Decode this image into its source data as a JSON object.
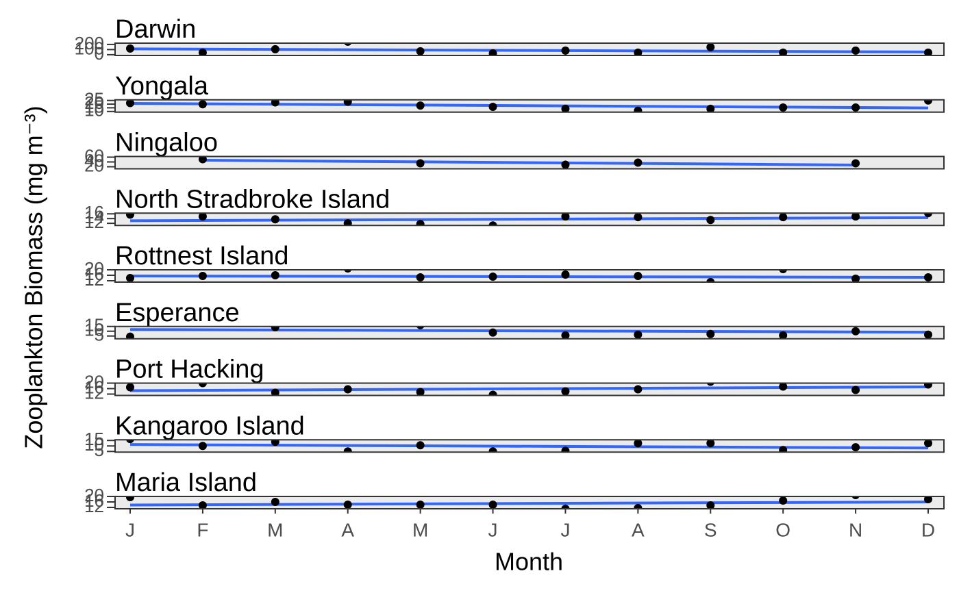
{
  "chart_data": {
    "type": "facet-scatter",
    "x_label": "Month",
    "y_label": "Zooplankton Biomass (mg m⁻³)",
    "categories": [
      "J",
      "F",
      "M",
      "A",
      "M",
      "J",
      "J",
      "A",
      "S",
      "O",
      "N",
      "D"
    ],
    "point_color": "#000000",
    "fit_color": "#3366ff",
    "panels": [
      {
        "title": "Darwin",
        "ylim": [
          -15,
          225
        ],
        "yticks": [
          0,
          100,
          200
        ],
        "values": [
          120,
          40,
          107,
          253,
          67,
          27,
          80,
          40,
          147,
          40,
          80,
          40
        ],
        "fit": [
          113,
          53
        ]
      },
      {
        "title": "Yongala",
        "ylim": [
          9.1,
          25.9
        ],
        "yticks": [
          10,
          15,
          20,
          25
        ],
        "values": [
          21.5,
          19.8,
          22.4,
          23.3,
          18.1,
          16.3,
          13.7,
          11,
          13.7,
          15.4,
          15.4,
          25
        ],
        "fit": [
          21,
          14.8
        ]
      },
      {
        "title": "Ningaloo",
        "ylim": [
          11.4,
          62.9
        ],
        "yticks": [
          20,
          40,
          60
        ],
        "values": [
          null,
          51.4,
          null,
          null,
          34.3,
          null,
          28.6,
          37.1,
          null,
          null,
          34.3,
          null
        ],
        "fit": [
          47.1,
          27.1
        ]
      },
      {
        "title": "North Stradbroke Island",
        "ylim": [
          11.1,
          16.3
        ],
        "yticks": [
          12,
          14,
          16
        ],
        "values": [
          15.7,
          14.9,
          13.7,
          12,
          11.7,
          11.1,
          14.9,
          14.6,
          13.4,
          14.6,
          14.9,
          16.3
        ],
        "fit": [
          13.1,
          14.4
        ]
      },
      {
        "title": "Rottnest Island",
        "ylim": [
          11,
          20
        ],
        "yticks": [
          12,
          16,
          20
        ],
        "values": [
          14,
          15.5,
          16,
          21,
          14.5,
          15,
          16.5,
          15.5,
          11,
          20.5,
          13.5,
          14.5
        ],
        "fit": [
          15.5,
          14.5
        ]
      },
      {
        "title": "Esperance",
        "ylim": [
          2.1,
          15
        ],
        "yticks": [
          5,
          10,
          15
        ],
        "values": [
          4.3,
          null,
          14.3,
          null,
          16.4,
          8.6,
          5.7,
          6.4,
          7.1,
          5.7,
          10,
          6.4
        ],
        "fit": [
          11.8,
          9
        ]
      },
      {
        "title": "Port Hacking",
        "ylim": [
          11,
          20
        ],
        "yticks": [
          12,
          16,
          20
        ],
        "values": [
          17,
          20,
          13,
          15.5,
          13.5,
          11.5,
          14,
          15.5,
          21,
          17.5,
          15,
          19
        ],
        "fit": [
          14.5,
          17.25
        ]
      },
      {
        "title": "Kangaroo Island",
        "ylim": [
          4.4,
          15.6
        ],
        "yticks": [
          5,
          10,
          15
        ],
        "values": [
          16.3,
          10,
          13.8,
          5,
          10.6,
          5,
          5.6,
          12.5,
          12.5,
          6.3,
          8.8,
          12.5
        ],
        "fit": [
          11.3,
          8.1
        ]
      },
      {
        "title": "Maria Island",
        "ylim": [
          11,
          20
        ],
        "yticks": [
          12,
          16,
          20
        ],
        "values": [
          19.5,
          13.5,
          16,
          14,
          14,
          14,
          11,
          11.5,
          13.5,
          17,
          21,
          18
        ],
        "fit": [
          13.75,
          16
        ]
      }
    ]
  }
}
